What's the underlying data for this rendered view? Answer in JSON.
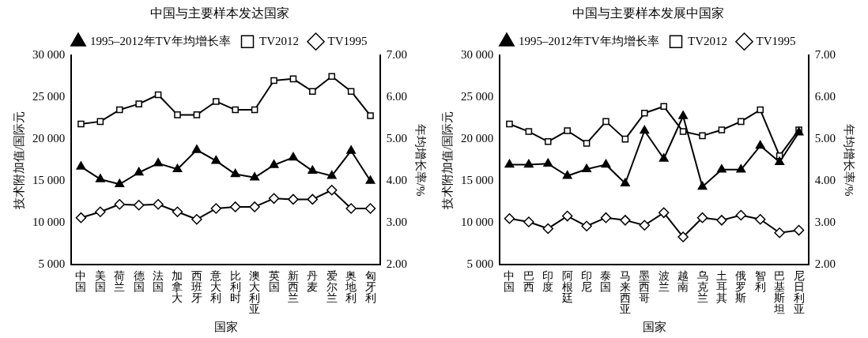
{
  "chart_data": [
    {
      "type": "line",
      "title": "中国与主要样本发达国家",
      "xlabel": "国家",
      "ylabel": "技术附加值/国际元",
      "y2label": "年均增长率/%",
      "categories": [
        "中国",
        "美国",
        "荷兰",
        "德国",
        "法国",
        "加拿大",
        "西班牙",
        "意大利",
        "比利时",
        "澳大利亚",
        "英国",
        "新西兰",
        "丹麦",
        "爱尔兰",
        "奥地利",
        "匈牙利"
      ],
      "series": [
        {
          "name": "TV1995",
          "color": "#000000",
          "marker": "diamond",
          "values": [
            10600,
            11300,
            12200,
            12100,
            12200,
            11300,
            10400,
            11700,
            11900,
            11900,
            12900,
            12800,
            12800,
            13900,
            11700,
            11700
          ]
        },
        {
          "name": "TV2012",
          "color": "#000000",
          "marker": "square",
          "values": [
            21800,
            22100,
            23500,
            24200,
            25300,
            22900,
            22900,
            24500,
            23500,
            23500,
            27000,
            27200,
            25700,
            27500,
            25700,
            22800
          ]
        },
        {
          "name": "1995–2012年TV年均增长率",
          "color": "#000000",
          "marker": "triangle",
          "axis": "y2",
          "values": [
            4.34,
            4.04,
            3.92,
            4.2,
            4.42,
            4.28,
            4.74,
            4.48,
            4.16,
            4.08,
            4.38,
            4.56,
            4.24,
            4.12,
            4.72,
            4.0
          ]
        }
      ],
      "ylim": [
        5000,
        30000
      ],
      "yticks": [
        {
          "value": 5000,
          "label": "5 000"
        },
        {
          "value": 10000,
          "label": "10 000"
        },
        {
          "value": 15000,
          "label": "15 000"
        },
        {
          "value": 20000,
          "label": "20 000"
        },
        {
          "value": 25000,
          "label": "25 000"
        },
        {
          "value": 30000,
          "label": "30 000"
        }
      ],
      "y2lim": [
        2,
        7
      ],
      "y2ticks": [
        {
          "value": 2,
          "label": "2.00"
        },
        {
          "value": 3,
          "label": "3.00"
        },
        {
          "value": 4,
          "label": "4.00"
        },
        {
          "value": 5,
          "label": "5.00"
        },
        {
          "value": 6,
          "label": "6.00"
        },
        {
          "value": 7,
          "label": "7.00"
        }
      ],
      "legend": "top"
    },
    {
      "type": "line",
      "title": "中国与主要样本发展中国家",
      "xlabel": "国家",
      "ylabel": "技术附加值/国际元",
      "y2label": "年均增长率/%",
      "categories": [
        "中国",
        "巴西",
        "印度",
        "阿根廷",
        "印尼",
        "泰国",
        "马来西亚",
        "墨西哥",
        "波兰",
        "越南",
        "乌克兰",
        "土耳其",
        "俄罗斯",
        "智利",
        "巴基斯坦",
        "尼日利亚"
      ],
      "series": [
        {
          "name": "TV1995",
          "color": "#000000",
          "marker": "diamond",
          "values": [
            10500,
            10100,
            9300,
            10800,
            9600,
            10600,
            10300,
            9700,
            11200,
            8300,
            10600,
            10300,
            10900,
            10400,
            8800,
            9100
          ]
        },
        {
          "name": "TV2012",
          "color": "#000000",
          "marker": "square",
          "values": [
            21800,
            20900,
            19700,
            21000,
            19500,
            22100,
            20000,
            23100,
            23900,
            20900,
            20400,
            21100,
            22100,
            23500,
            18000,
            21100
          ]
        },
        {
          "name": "1995–2012年TV年均增长率",
          "color": "#000000",
          "marker": "triangle",
          "axis": "y2",
          "values": [
            4.39,
            4.39,
            4.41,
            4.12,
            4.28,
            4.39,
            3.94,
            5.2,
            4.53,
            5.55,
            3.86,
            4.27,
            4.27,
            4.84,
            4.45,
            5.16
          ]
        }
      ],
      "ylim": [
        5000,
        30000
      ],
      "yticks": [
        {
          "value": 5000,
          "label": "5 000"
        },
        {
          "value": 10000,
          "label": "10 000"
        },
        {
          "value": 15000,
          "label": "15 000"
        },
        {
          "value": 20000,
          "label": "20 000"
        },
        {
          "value": 25000,
          "label": "25 000"
        },
        {
          "value": 30000,
          "label": "30 000"
        }
      ],
      "y2lim": [
        2,
        7
      ],
      "y2ticks": [
        {
          "value": 2,
          "label": "2.00"
        },
        {
          "value": 3,
          "label": "3.00"
        },
        {
          "value": 4,
          "label": "4.00"
        },
        {
          "value": 5,
          "label": "5.00"
        },
        {
          "value": 6,
          "label": "6.00"
        },
        {
          "value": 7,
          "label": "7.00"
        }
      ],
      "legend": "top"
    }
  ]
}
